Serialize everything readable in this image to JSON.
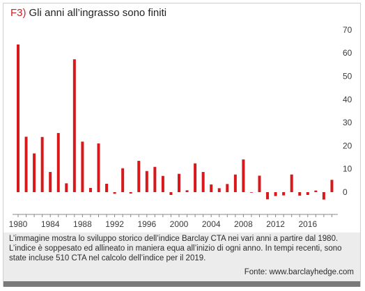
{
  "title": {
    "tag": "F3)",
    "text": "Gli anni all’ingrasso sono finiti"
  },
  "caption": "L’immagine mostra lo sviluppo storico dell’indice Barclay CTA nei vari anni a partire dal 1980. L’indice è soppesato ed allineato in maniera equa all’inizio di ogni anno. In tempi recenti, sono state incluse 510 CTA nel calcolo dell’indice per il 2019.",
  "source": "Fonte: www.barclayhedge.com",
  "colors": {
    "bar": "#d7191c",
    "axis": "#888888",
    "caption_bg": "#ececec"
  },
  "chart_data": {
    "type": "bar",
    "categories": [
      1980,
      1981,
      1982,
      1983,
      1984,
      1985,
      1986,
      1987,
      1988,
      1989,
      1990,
      1991,
      1992,
      1993,
      1994,
      1995,
      1996,
      1997,
      1998,
      1999,
      2000,
      2001,
      2002,
      2003,
      2004,
      2005,
      2006,
      2007,
      2008,
      2009,
      2010,
      2011,
      2012,
      2013,
      2014,
      2015,
      2016,
      2017,
      2018,
      2019
    ],
    "values": [
      63.7,
      23.9,
      16.7,
      23.8,
      8.7,
      25.5,
      3.8,
      57.3,
      21.8,
      1.8,
      21.0,
      3.6,
      -0.7,
      10.3,
      -0.6,
      13.5,
      9.1,
      10.9,
      7.0,
      -1.2,
      7.9,
      0.8,
      12.4,
      8.7,
      3.3,
      1.7,
      3.5,
      7.6,
      14.1,
      -0.1,
      7.1,
      -3.1,
      -1.7,
      -1.4,
      7.6,
      -1.5,
      -1.2,
      0.7,
      -3.2,
      5.3
    ],
    "x_tick_labels": [
      "1980",
      "1984",
      "1988",
      "1992",
      "1996",
      "2000",
      "2004",
      "2008",
      "2012",
      "2016"
    ],
    "y_ticks": [
      0,
      10,
      20,
      30,
      40,
      50,
      60,
      70
    ],
    "ylim": [
      -3,
      70
    ],
    "y_axis_position": "right",
    "grid": false,
    "legend": "none"
  }
}
